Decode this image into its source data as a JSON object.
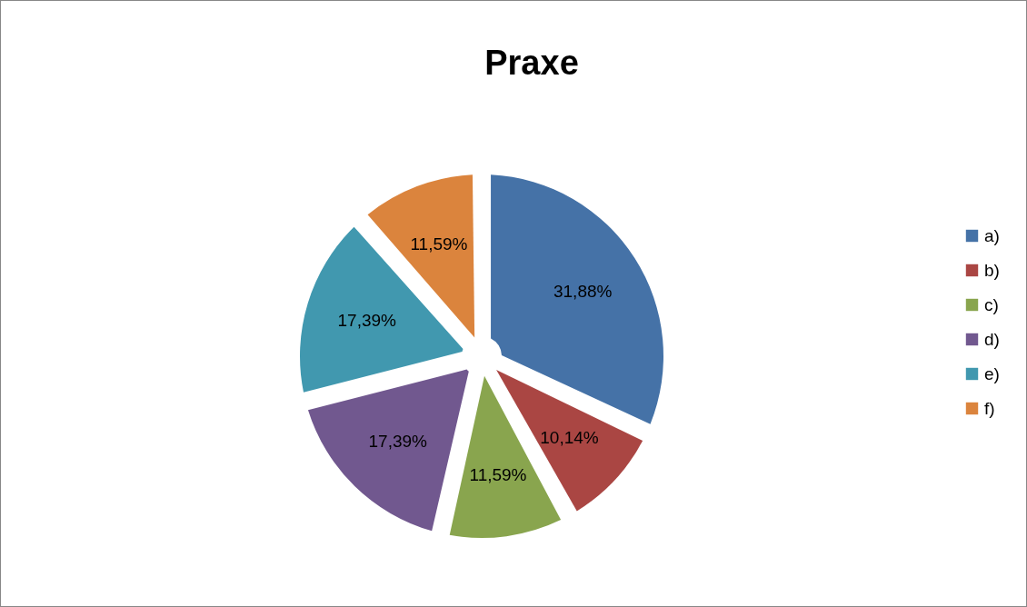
{
  "chart_data": {
    "type": "pie",
    "title": "Praxe",
    "categories": [
      "a)",
      "b)",
      "c)",
      "d)",
      "e)",
      "f)"
    ],
    "values": [
      31.88,
      10.14,
      11.59,
      17.39,
      17.39,
      11.59
    ],
    "value_labels": [
      "31,88%",
      "10,14%",
      "11,59%",
      "17,39%",
      "17,39%",
      "11,59%"
    ],
    "colors": [
      "#4572a7",
      "#aa4643",
      "#89a54e",
      "#71588f",
      "#4198af",
      "#db843d"
    ],
    "legend": "right"
  }
}
